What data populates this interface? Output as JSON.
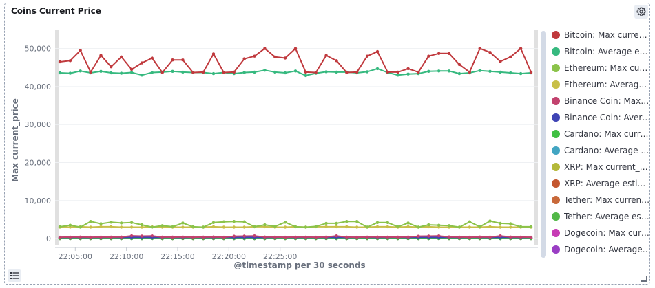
{
  "panel": {
    "title": "Coins Current Price",
    "settings_icon": "gear-icon",
    "legend_toggle_icon": "list-icon"
  },
  "legend": [
    {
      "label": "Bitcoin: Max current...",
      "color": "#c0393d"
    },
    {
      "label": "Bitcoin: Average est...",
      "color": "#36b97f"
    },
    {
      "label": "Ethereum: Max curr...",
      "color": "#8bc34a"
    },
    {
      "label": "Ethereum: Average ...",
      "color": "#c8bf48"
    },
    {
      "label": "Binance Coin: Max c...",
      "color": "#c2426e"
    },
    {
      "label": "Binance Coin: Avera...",
      "color": "#3f44b5"
    },
    {
      "label": "Cardano: Max curre...",
      "color": "#40c043"
    },
    {
      "label": "Cardano: Average e...",
      "color": "#42a5c2"
    },
    {
      "label": "XRP: Max current_p...",
      "color": "#b4b93a"
    },
    {
      "label": "XRP: Average estim...",
      "color": "#c4562f"
    },
    {
      "label": "Tether: Max current...",
      "color": "#c8693a"
    },
    {
      "label": "Tether: Average esti...",
      "color": "#52b848"
    },
    {
      "label": "Dogecoin: Max curr...",
      "color": "#c73bb5"
    },
    {
      "label": "Dogecoin: Average ...",
      "color": "#9a3ec4"
    }
  ],
  "chart_data": {
    "type": "line",
    "title": "Coins Current Price",
    "xlabel": "@timestamp per 30 seconds",
    "ylabel": "Max current_price",
    "ylim": [
      -1800,
      55000
    ],
    "y_ticks": [
      0,
      10000,
      20000,
      30000,
      40000,
      50000
    ],
    "y_tick_labels": [
      "0",
      "10,000",
      "20,000",
      "30,000",
      "40,000",
      "50,000"
    ],
    "x_tick_labels": [
      "22:05:00",
      "22:10:00",
      "22:15:00",
      "22:20:00",
      "22:25:00"
    ],
    "x_tick_index": [
      1.5,
      6.5,
      11.5,
      16.5,
      21.5
    ],
    "x_points_count": 47,
    "x_start": "22:04:15",
    "x_step_seconds": 30,
    "grid": true,
    "legend_position": "right",
    "series": [
      {
        "name": "Bitcoin: Max current...",
        "color": "#c0393d",
        "values": [
          46500,
          46800,
          49500,
          43800,
          48200,
          45200,
          47800,
          44500,
          46200,
          47500,
          43700,
          47000,
          47000,
          43700,
          43800,
          48600,
          43700,
          43800,
          47300,
          48000,
          50000,
          47800,
          47500,
          50000,
          43800,
          43700,
          48200,
          46800,
          43700,
          43800,
          48000,
          49200,
          43800,
          43800,
          44700,
          43800,
          48000,
          48700,
          48700,
          45800,
          43800,
          50000,
          49000,
          46600,
          47800,
          50000,
          43800
        ]
      },
      {
        "name": "Bitcoin: Average est...",
        "color": "#36b97f",
        "values": [
          43600,
          43500,
          44100,
          43600,
          44000,
          43600,
          43500,
          43700,
          43000,
          43700,
          43800,
          44000,
          43800,
          43700,
          43700,
          43400,
          43700,
          43400,
          43700,
          43800,
          44300,
          43800,
          43600,
          44100,
          42900,
          43500,
          43900,
          43800,
          43800,
          43600,
          43900,
          44700,
          43700,
          43000,
          43300,
          43400,
          44000,
          44100,
          44100,
          43400,
          43600,
          44200,
          44000,
          43800,
          43600,
          43400,
          43600
        ]
      },
      {
        "name": "Ethereum: Max curr...",
        "color": "#8bc34a",
        "values": [
          3100,
          3500,
          3000,
          4500,
          3900,
          4300,
          4100,
          4200,
          3600,
          3000,
          3400,
          3100,
          4100,
          3100,
          3000,
          4200,
          4400,
          4500,
          4400,
          3100,
          3600,
          3200,
          4300,
          3100,
          3000,
          3200,
          4000,
          4000,
          4500,
          4500,
          3000,
          4200,
          4200,
          3100,
          4100,
          3000,
          3600,
          3500,
          3400,
          3000,
          4400,
          3100,
          4600,
          4000,
          3900,
          3100,
          3100
        ]
      },
      {
        "name": "Ethereum: Average ...",
        "color": "#c8bf48",
        "values": [
          3000,
          3000,
          3100,
          3000,
          3100,
          3100,
          3000,
          3000,
          3000,
          3100,
          3000,
          3000,
          3000,
          3000,
          3000,
          3100,
          3000,
          3000,
          3000,
          3100,
          3100,
          3000,
          3000,
          3100,
          3000,
          3100,
          3100,
          3100,
          3100,
          3000,
          3000,
          3100,
          3100,
          3000,
          3100,
          3000,
          3100,
          3000,
          3000,
          3000,
          3000,
          3000,
          3100,
          3000,
          3000,
          3000,
          3000
        ]
      },
      {
        "name": "Binance Coin: Max c...",
        "color": "#c2426e",
        "values": [
          350,
          380,
          410,
          360,
          390,
          370,
          400,
          720,
          650,
          700,
          380,
          370,
          400,
          350,
          380,
          420,
          360,
          600,
          650,
          700,
          400,
          380,
          360,
          390,
          380,
          350,
          410,
          700,
          380,
          360,
          380,
          400,
          390,
          370,
          410,
          600,
          650,
          700,
          420,
          380,
          360,
          400,
          380,
          700,
          400,
          380,
          360
        ]
      },
      {
        "name": "Binance Coin: Avera...",
        "color": "#3f44b5",
        "values": [
          300,
          320,
          310,
          300,
          330,
          310,
          300,
          320,
          310,
          300,
          310,
          320,
          300,
          310,
          300,
          320,
          310,
          300,
          320,
          310,
          300,
          310,
          320,
          300,
          310,
          300,
          320,
          310,
          300,
          310,
          320,
          300,
          310,
          320,
          300,
          310,
          320,
          300,
          310,
          300,
          320,
          310,
          300,
          320,
          310,
          300,
          310
        ]
      },
      {
        "name": "Cardano: Max curre...",
        "color": "#40c043",
        "values": [
          10,
          12,
          11,
          10,
          12,
          11,
          10,
          12,
          11,
          10,
          12,
          11,
          10,
          12,
          11,
          10,
          12,
          11,
          10,
          12,
          11,
          10,
          12,
          11,
          10,
          12,
          11,
          10,
          12,
          11,
          10,
          12,
          11,
          10,
          12,
          11,
          10,
          12,
          11,
          10,
          12,
          11,
          10,
          12,
          11,
          10,
          12
        ]
      },
      {
        "name": "Cardano: Average e...",
        "color": "#42a5c2",
        "values": [
          8,
          9,
          8,
          9,
          8,
          9,
          8,
          9,
          8,
          9,
          8,
          9,
          8,
          9,
          8,
          9,
          8,
          9,
          8,
          9,
          8,
          9,
          8,
          9,
          8,
          9,
          8,
          9,
          8,
          9,
          8,
          9,
          8,
          9,
          8,
          9,
          8,
          9,
          8,
          9,
          8,
          9,
          8,
          9,
          8,
          9,
          8
        ]
      },
      {
        "name": "XRP: Max current_p...",
        "color": "#b4b93a",
        "values": [
          20,
          22,
          21,
          20,
          22,
          21,
          20,
          22,
          21,
          20,
          22,
          21,
          20,
          22,
          21,
          20,
          22,
          21,
          20,
          22,
          21,
          20,
          22,
          21,
          20,
          22,
          21,
          20,
          22,
          21,
          20,
          22,
          21,
          20,
          22,
          21,
          20,
          22,
          21,
          20,
          22,
          21,
          20,
          22,
          21,
          20,
          22
        ]
      },
      {
        "name": "XRP: Average estim...",
        "color": "#c4562f",
        "values": [
          15,
          16,
          15,
          16,
          15,
          16,
          15,
          16,
          15,
          16,
          15,
          16,
          15,
          16,
          15,
          16,
          15,
          16,
          15,
          16,
          15,
          16,
          15,
          16,
          15,
          16,
          15,
          16,
          15,
          16,
          15,
          16,
          15,
          16,
          15,
          16,
          15,
          16,
          15,
          16,
          15,
          16,
          15,
          16,
          15,
          16,
          15
        ]
      },
      {
        "name": "Tether: Max current...",
        "color": "#c8693a",
        "values": [
          5,
          5,
          5,
          5,
          5,
          5,
          5,
          5,
          5,
          5,
          5,
          5,
          5,
          5,
          5,
          5,
          5,
          5,
          5,
          5,
          5,
          5,
          5,
          5,
          5,
          5,
          5,
          5,
          5,
          5,
          5,
          5,
          5,
          5,
          5,
          5,
          5,
          5,
          5,
          5,
          5,
          5,
          5,
          5,
          5,
          5,
          5
        ]
      },
      {
        "name": "Tether: Average esti...",
        "color": "#52b848",
        "values": [
          4,
          4,
          4,
          4,
          4,
          4,
          4,
          4,
          4,
          4,
          4,
          4,
          4,
          4,
          4,
          4,
          4,
          4,
          4,
          4,
          4,
          4,
          4,
          4,
          4,
          4,
          4,
          4,
          4,
          4,
          4,
          4,
          4,
          4,
          4,
          4,
          4,
          4,
          4,
          4,
          4,
          4,
          4,
          4,
          4,
          4,
          4
        ]
      },
      {
        "name": "Dogecoin: Max curr...",
        "color": "#c73bb5",
        "values": [
          150,
          180,
          160,
          170,
          190,
          150,
          170,
          600,
          550,
          620,
          170,
          160,
          180,
          150,
          170,
          190,
          160,
          550,
          600,
          580,
          170,
          160,
          180,
          150,
          170,
          160,
          190,
          560,
          170,
          160,
          180,
          170,
          150,
          160,
          190,
          580,
          620,
          600,
          170,
          160,
          180,
          150,
          170,
          600,
          180,
          160,
          170
        ]
      },
      {
        "name": "Dogecoin: Average ...",
        "color": "#9a3ec4",
        "values": [
          120,
          130,
          125,
          120,
          135,
          120,
          130,
          450,
          420,
          460,
          130,
          125,
          120,
          135,
          120,
          130,
          125,
          420,
          460,
          440,
          130,
          120,
          135,
          120,
          130,
          125,
          120,
          430,
          130,
          120,
          125,
          130,
          120,
          135,
          120,
          440,
          470,
          450,
          130,
          120,
          125,
          120,
          135,
          450,
          130,
          120,
          125
        ]
      }
    ]
  }
}
